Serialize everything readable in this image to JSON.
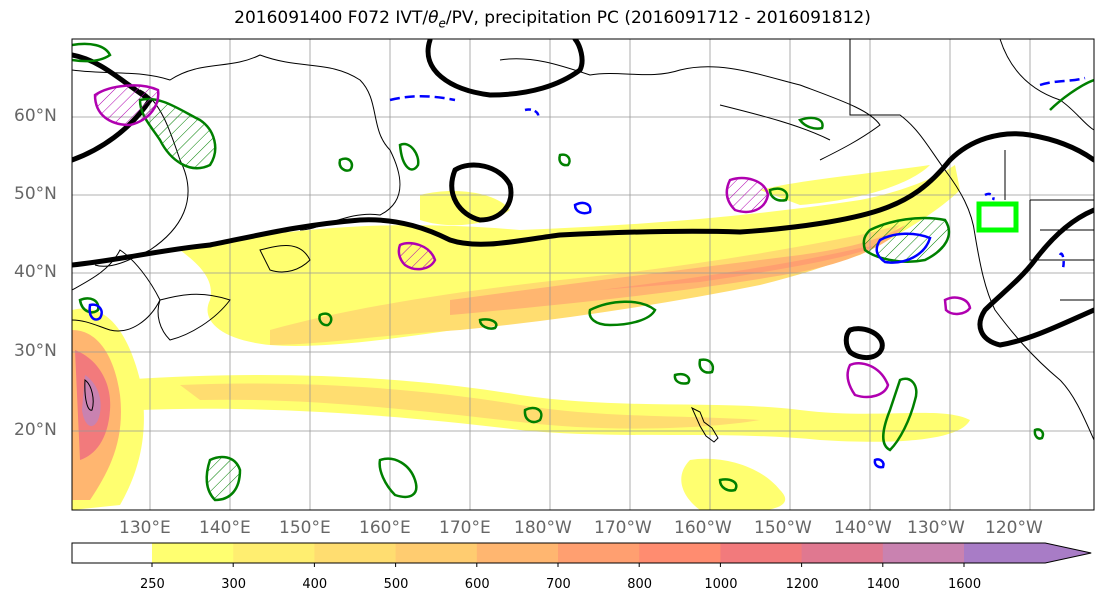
{
  "title": {
    "prefix": "2016091400 F072 IVT/",
    "theta": "θ",
    "sub": "e",
    "suffix": "/PV, precipitation PC (2016091712 - 2016091812)"
  },
  "lat_labels": [
    "60°N",
    "50°N",
    "40°N",
    "30°N",
    "20°N"
  ],
  "lon_labels": [
    "130°E",
    "140°E",
    "150°E",
    "160°E",
    "170°E",
    "180°W",
    "170°W",
    "160°W",
    "150°W",
    "140°W",
    "130°W",
    "120°W"
  ],
  "colorbar": {
    "ticks": [
      "250",
      "300",
      "400",
      "500",
      "600",
      "700",
      "800",
      "1000",
      "1200",
      "1400",
      "1600"
    ],
    "colors": [
      "#ffff70",
      "#ffee70",
      "#ffdd70",
      "#ffcc70",
      "#ffb670",
      "#ff9f70",
      "#ff8c70",
      "#f27a7c",
      "#e07890",
      "#c982b0",
      "#a87cc6"
    ]
  },
  "legend_colors": {
    "ivt_fill_low": "#ffff70",
    "ivt_fill_high": "#e05a6a",
    "pv_contour": "#000000",
    "theta_e_contour": "#008000",
    "precip_pos": "#b000b0",
    "precip_neg": "#0000ff",
    "target_box": "#00ff00"
  }
}
